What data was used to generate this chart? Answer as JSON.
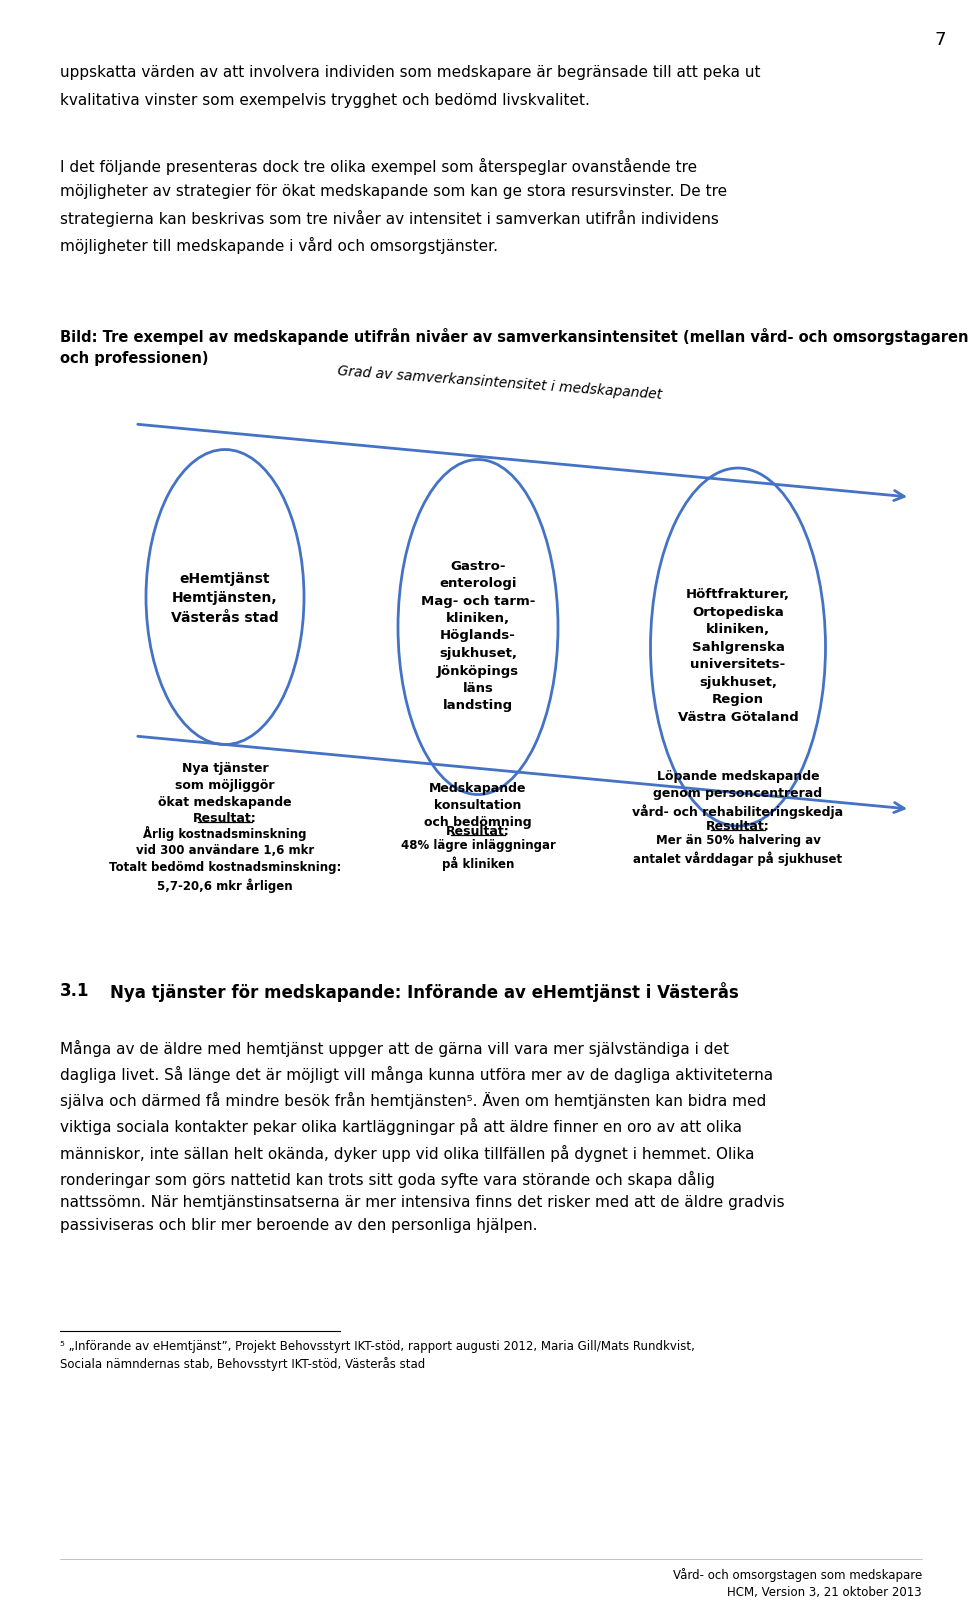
{
  "page_number": "7",
  "bg_color": "#ffffff",
  "text_color": "#000000",
  "blue_color": "#4472C4",
  "para1_line1": "uppskatta värden av att involvera individen som medskapare är begränsade till att peka ut",
  "para1_line2": "kvalitativa vinster som exempelvis trygghet och bedömd livskvalitet.",
  "para2": "I det följande presenteras dock tre olika exempel som återspeglar ovanstående tre\nmöjligheter av strategier för ökat medskapande som kan ge stora resursvinster. De tre\nstrategierna kan beskrivas som tre nivåer av intensitet i samverkan utifrån individens\nmöjligheter till medskapande i vård och omsorgstjänster.",
  "caption": "Bild: Tre exempel av medskapande utifrån nivåer av samverkansintensitet (mellan vård- och omsorgstagaren\noch professionen)",
  "arrow_label": "Grad av samverkansintensitet i medskapandet",
  "ellipse1_text": "eHemtjänst\nHemtjänsten,\nVästerås stad",
  "ellipse2_text": "Gastro-\nenterologi\nMag- och tarm-\nkliniken,\nHöglands-\nsjukhuset,\nJönköpings\nläns\nlandsting",
  "ellipse3_text": "Höftfrakturer,\nOrtopediska\nkliniken,\nSahlgrenska\nuniversitets-\nsjukhuset,\nRegion\nVästra Götaland",
  "below1_top": "Nya tjänster\nsom möjliggör\nökat medskapande",
  "below1_result": "Resultat:",
  "below1_detail": "Årlig kostnadsminskning\nvid 300 användare 1,6 mkr\nTotalt bedömd kostnadsminskning:\n5,7-20,6 mkr årligen",
  "below2_top": "Medskapande\nkonsultation\noch bedömning",
  "below2_result": "Resultat:",
  "below2_detail": "48% lägre inläggningar\npå kliniken",
  "below3_top": "Löpande medskapande\ngenom personcentrerad\nvård- och rehabiliteringskedja",
  "below3_result": "Resultat:",
  "below3_detail": "Mer än 50% halvering av\nantalet vårddagar på sjukhuset",
  "section31_num": "3.1",
  "section31_title": "Nya tjänster för medskapande: Införande av eHemtjänst i Västerås",
  "body": "Många av de äldre med hemtjänst uppger att de gärna vill vara mer självständiga i det\ndagliga livet. Så länge det är möjligt vill många kunna utföra mer av de dagliga aktiviteterna\nsjälva och därmed få mindre besök från hemtjänsten⁵. Även om hemtjänsten kan bidra med\nviktiga sociala kontakter pekar olika kartläggningar på att äldre finner en oro av att olika\nmänniskor, inte sällan helt okända, dyker upp vid olika tillfällen på dygnet i hemmet. Olika\nronderingar som görs nattetid kan trots sitt goda syfte vara störande och skapa dålig\nnattssömn. När hemtjänstinsatserna är mer intensiva finns det risker med att de äldre gradvis\npassiviseras och blir mer beroende av den personliga hjälpen.",
  "footnote": "⁵ „Införande av eHemtjänst”, Projekt Behovsstyrt IKT-stöd, rapport augusti 2012, Maria Gill/Mats Rundkvist,\nSociala nämndernas stab, Behovsstyrt IKT-stöd, Västerås stad",
  "footer": "Vård- och omsorgstagen som medskapare\nHCM, Version 3, 21 oktober 2013"
}
